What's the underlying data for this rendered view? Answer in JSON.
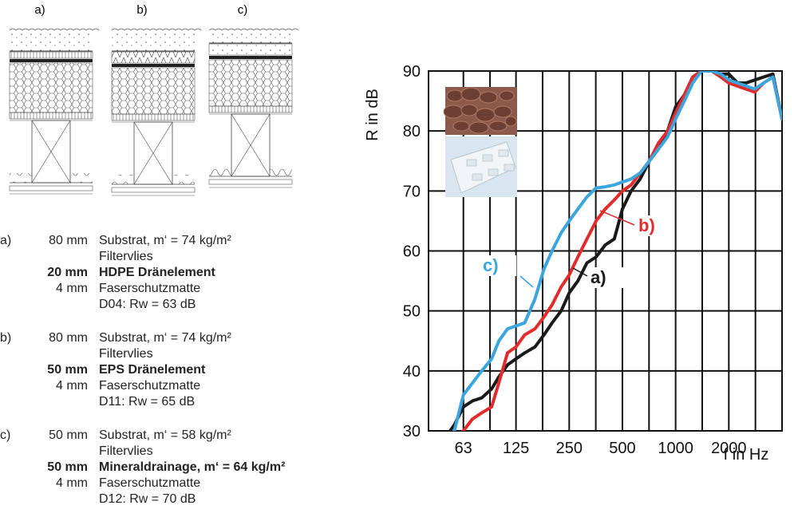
{
  "sections": {
    "labels": [
      "a)",
      "b)",
      "c)"
    ]
  },
  "configs": [
    {
      "tag": "a)",
      "rows": [
        {
          "thickness": "80 mm",
          "text": "Substrat, m‘ = 74 kg/m²",
          "bold": false
        },
        {
          "thickness": "",
          "text": "Filtervlies",
          "bold": false
        },
        {
          "thickness": "20 mm",
          "text": "HDPE Dränelement",
          "bold": true
        },
        {
          "thickness": "4 mm",
          "text": "Faserschutzmatte",
          "bold": false
        },
        {
          "thickness": "",
          "text": "D04: Rw = 63 dB",
          "bold": false
        }
      ]
    },
    {
      "tag": "b)",
      "rows": [
        {
          "thickness": "80 mm",
          "text": "Substrat, m‘ = 74 kg/m²",
          "bold": false
        },
        {
          "thickness": "",
          "text": "Filtervlies",
          "bold": false
        },
        {
          "thickness": "50 mm",
          "text": "EPS Dränelement",
          "bold": true
        },
        {
          "thickness": "4 mm",
          "text": "Faserschutzmatte",
          "bold": false
        },
        {
          "thickness": "",
          "text": "D11: Rw = 65 dB",
          "bold": false
        }
      ]
    },
    {
      "tag": "c)",
      "rows": [
        {
          "thickness": "50 mm",
          "text": "Substrat, m‘ = 58 kg/m²",
          "bold": false
        },
        {
          "thickness": "",
          "text": "Filtervlies",
          "bold": false
        },
        {
          "thickness": "50 mm",
          "text": "Mineraldrainage, m‘ = 64 kg/m²",
          "bold": true
        },
        {
          "thickness": "4 mm",
          "text": "Faserschutzmatte",
          "bold": false
        },
        {
          "thickness": "",
          "text": "D12: Rw = 70 dB",
          "bold": false
        }
      ]
    }
  ],
  "chart_data": {
    "type": "line",
    "ylabel": "R in dB",
    "xlabel": "f in Hz",
    "ylim": [
      30,
      90
    ],
    "yticks": [
      30,
      40,
      50,
      60,
      70,
      80,
      90
    ],
    "x_tick_labels": [
      "63",
      "125",
      "250",
      "500",
      "1000",
      "2000"
    ],
    "x_tick_values": [
      63,
      125,
      250,
      500,
      1000,
      2000
    ],
    "x_scale": "log",
    "xlim": [
      40,
      4000
    ],
    "grid": true,
    "series": [
      {
        "name": "a)",
        "color": "#1a1a1a",
        "x": [
          50,
          56,
          63,
          71,
          80,
          91,
          100,
          112,
          125,
          140,
          160,
          180,
          200,
          225,
          250,
          280,
          315,
          355,
          400,
          450,
          500,
          560,
          630,
          710,
          800,
          900,
          1000,
          1120,
          1250,
          1400,
          1600,
          1800,
          2000,
          2240,
          2500,
          2800,
          3150,
          3550,
          4000
        ],
        "y": [
          29,
          31,
          34,
          35,
          35.5,
          37,
          39,
          41,
          42,
          43,
          44,
          46,
          48,
          50,
          53,
          55,
          58,
          59,
          61,
          62,
          67,
          70,
          72,
          75,
          77,
          80,
          84,
          86,
          89,
          90,
          90,
          89.5,
          89.5,
          88,
          88,
          88.5,
          89,
          89.5,
          82
        ]
      },
      {
        "name": "b)",
        "color": "#e32b2b",
        "x": [
          63,
          71,
          80,
          91,
          100,
          112,
          125,
          140,
          160,
          180,
          200,
          225,
          250,
          280,
          315,
          355,
          400,
          450,
          500,
          560,
          630,
          710,
          800,
          900,
          1000,
          1120,
          1250,
          1400,
          1600,
          1800,
          2000,
          2240,
          2500,
          2800,
          3150,
          3550,
          4000
        ],
        "y": [
          30,
          32,
          33,
          34,
          38,
          43,
          44,
          46,
          47,
          49,
          51,
          54,
          56,
          59,
          62,
          65,
          67,
          68.5,
          70,
          71,
          73,
          75,
          78,
          80,
          83,
          86,
          89,
          90,
          90,
          89,
          88,
          87.5,
          87,
          86.5,
          88,
          89,
          82
        ]
      },
      {
        "name": "c)",
        "color": "#3aa6dd",
        "x": [
          50,
          56,
          63,
          71,
          80,
          91,
          100,
          112,
          125,
          140,
          160,
          180,
          200,
          225,
          250,
          280,
          315,
          355,
          400,
          450,
          500,
          560,
          630,
          710,
          800,
          900,
          1000,
          1120,
          1250,
          1400,
          1600,
          1800,
          2000,
          2240,
          2500,
          2800,
          3150,
          3550,
          4000
        ],
        "y": [
          29,
          30,
          36,
          38,
          40,
          42,
          45,
          47,
          47.5,
          48,
          52,
          57,
          60,
          63,
          65,
          67,
          69,
          70.5,
          70.7,
          71,
          71.5,
          72,
          73,
          75,
          77,
          79,
          82,
          85,
          88,
          90,
          90,
          89.5,
          88.5,
          88,
          87.5,
          87,
          88,
          89,
          82
        ]
      }
    ],
    "annotations": [
      "a)",
      "b)",
      "c)"
    ]
  }
}
